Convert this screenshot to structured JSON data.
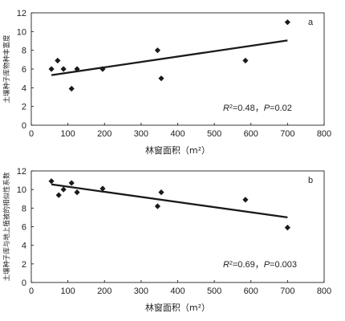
{
  "chart_data": [
    {
      "type": "scatter",
      "panel_label": "a",
      "xlabel": "林窗面积（m²）",
      "ylabel": "土壤种子库物种丰富度",
      "xlim": [
        0,
        800
      ],
      "ylim": [
        0,
        12
      ],
      "xticks": [
        "0",
        "100",
        "200",
        "300",
        "400",
        "500",
        "600",
        "700",
        "800"
      ],
      "yticks": [
        "0",
        "2",
        "4",
        "6",
        "8",
        "10",
        "12"
      ],
      "points": [
        {
          "x": 55,
          "y": 6.0
        },
        {
          "x": 72,
          "y": 6.9
        },
        {
          "x": 88,
          "y": 6.0
        },
        {
          "x": 110,
          "y": 3.9
        },
        {
          "x": 125,
          "y": 6.0
        },
        {
          "x": 195,
          "y": 6.0
        },
        {
          "x": 345,
          "y": 8.0
        },
        {
          "x": 355,
          "y": 5.0
        },
        {
          "x": 585,
          "y": 6.9
        },
        {
          "x": 700,
          "y": 11.0
        }
      ],
      "fit": {
        "x": [
          55,
          700
        ],
        "y": [
          5.35,
          9.05
        ]
      },
      "annotation": {
        "r2_label": "R",
        "r2_sup": "2",
        "r2_value": "=0.48，",
        "p_label": "P",
        "p_value": "=0.02"
      }
    },
    {
      "type": "scatter",
      "panel_label": "b",
      "xlabel": "林窗面积（m²）",
      "ylabel": "土壤种子库与地上植被的相似性系数",
      "xlim": [
        0,
        800
      ],
      "ylim": [
        0,
        12
      ],
      "xticks": [
        "0",
        "100",
        "200",
        "300",
        "400",
        "500",
        "600",
        "700",
        "800"
      ],
      "yticks": [
        "0",
        "2",
        "4",
        "6",
        "8",
        "10",
        "12"
      ],
      "points": [
        {
          "x": 55,
          "y": 10.9
        },
        {
          "x": 75,
          "y": 9.4
        },
        {
          "x": 88,
          "y": 10.0
        },
        {
          "x": 110,
          "y": 10.7
        },
        {
          "x": 125,
          "y": 9.7
        },
        {
          "x": 195,
          "y": 10.1
        },
        {
          "x": 345,
          "y": 8.2
        },
        {
          "x": 355,
          "y": 9.7
        },
        {
          "x": 585,
          "y": 8.9
        },
        {
          "x": 700,
          "y": 5.9
        }
      ],
      "fit": {
        "x": [
          55,
          700
        ],
        "y": [
          10.55,
          7.0
        ]
      },
      "annotation": {
        "r2_label": "R",
        "r2_sup": "2",
        "r2_value": "=0.69，",
        "p_label": "P",
        "p_value": "=0.003"
      }
    }
  ]
}
